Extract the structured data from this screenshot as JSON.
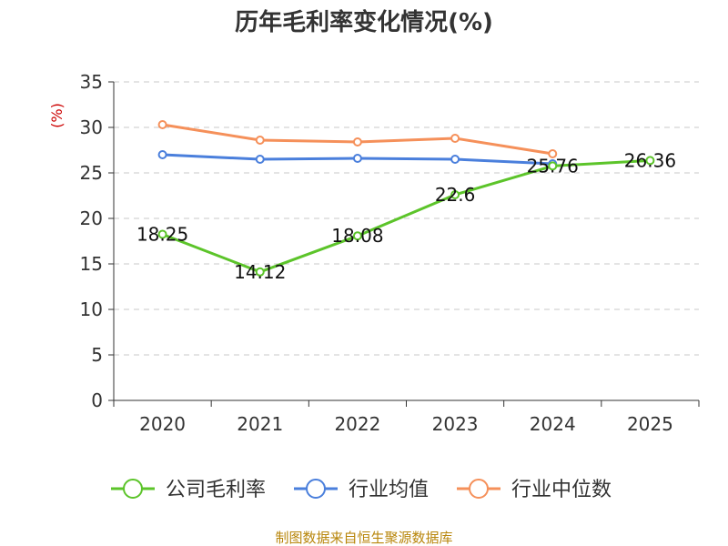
{
  "chart_data": {
    "type": "line",
    "title": "历年毛利率变化情况(%)",
    "ylabel": "(%)",
    "xlabel": "",
    "categories": [
      "2020",
      "2021",
      "2022",
      "2023",
      "2024",
      "2025"
    ],
    "ylim": [
      0,
      35
    ],
    "yticks": [
      0,
      5,
      10,
      15,
      20,
      25,
      30,
      35
    ],
    "grid": true,
    "legend_position": "bottom",
    "series": [
      {
        "name": "公司毛利率",
        "color": "#5cc42a",
        "values": [
          18.25,
          14.12,
          18.08,
          22.6,
          25.76,
          26.36
        ],
        "labels": [
          "18.25",
          "14.12",
          "18.08",
          "22.6",
          "25.76",
          "26.36"
        ]
      },
      {
        "name": "行业均值",
        "color": "#4a7fdc",
        "values": [
          27.0,
          26.5,
          26.6,
          26.5,
          26.0,
          null
        ]
      },
      {
        "name": "行业中位数",
        "color": "#f5905a",
        "values": [
          30.3,
          28.6,
          28.4,
          28.8,
          27.1,
          null
        ]
      }
    ]
  },
  "footer": {
    "source": "制图数据来自恒生聚源数据库"
  }
}
